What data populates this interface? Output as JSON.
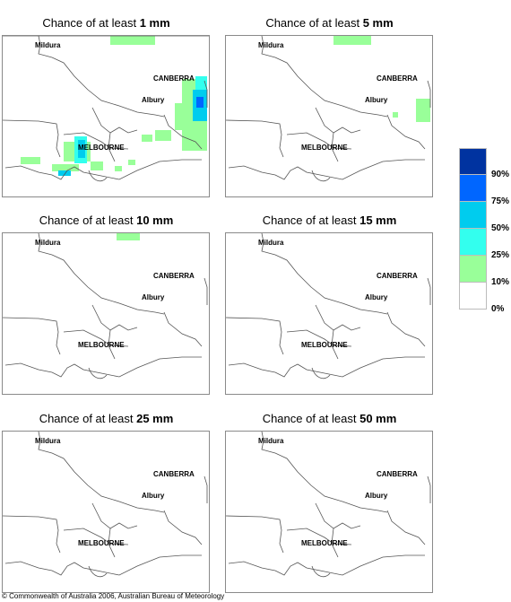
{
  "panels": [
    {
      "prefix": "Chance of at least ",
      "amount": "1 mm"
    },
    {
      "prefix": "Chance of at least ",
      "amount": "5 mm"
    },
    {
      "prefix": "Chance of at least ",
      "amount": "10 mm"
    },
    {
      "prefix": "Chance of at least ",
      "amount": "15 mm"
    },
    {
      "prefix": "Chance of at least ",
      "amount": "25 mm"
    },
    {
      "prefix": "Chance of at least ",
      "amount": "50 mm"
    }
  ],
  "places": {
    "mildura": "Mildura",
    "canberra": "CANBERRA",
    "albury": "Albury",
    "melbourne": "MELBOURNE"
  },
  "legend": {
    "colors": [
      "#0033a0",
      "#0066ff",
      "#00ccee",
      "#33ffee",
      "#99ff99",
      "#ffffff"
    ],
    "ticks": [
      "90%",
      "75%",
      "50%",
      "25%",
      "10%",
      "0%"
    ]
  },
  "footer": "© Commonwealth of Australia 2006, Australian Bureau of Meteorology"
}
